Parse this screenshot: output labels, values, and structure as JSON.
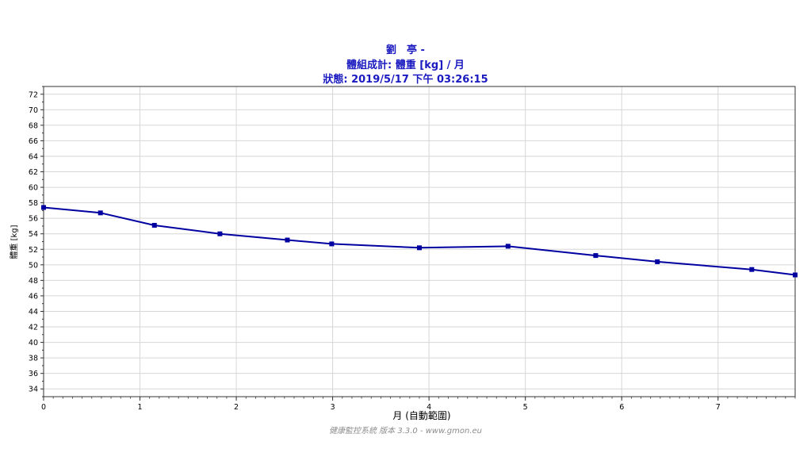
{
  "chart_data": {
    "type": "line",
    "title": "劉　亭 -",
    "subtitle": "體組成計: 體重 [kg] / 月",
    "status": "狀態:  2019/5/17 下午 03:26:15",
    "xlabel": "月 (自動範圍)",
    "ylabel": "體重 [kg]",
    "xlim": [
      0,
      7.8
    ],
    "ylim": [
      33,
      73
    ],
    "xticks": [
      0,
      1,
      2,
      3,
      4,
      5,
      6,
      7
    ],
    "yticks": [
      34,
      36,
      38,
      40,
      42,
      44,
      46,
      48,
      50,
      52,
      54,
      56,
      58,
      60,
      62,
      64,
      66,
      68,
      70,
      72
    ],
    "grid": true,
    "series": [
      {
        "color": "#0000a0",
        "x": [
          0,
          0.59,
          1.15,
          1.83,
          2.53,
          2.99,
          3.9,
          4.82,
          5.73,
          6.37,
          7.35,
          7.8
        ],
        "y": [
          57.4,
          56.7,
          55.1,
          54.0,
          53.2,
          52.7,
          52.2,
          52.4,
          51.2,
          50.4,
          49.4,
          48.7
        ]
      }
    ]
  },
  "footer": "健康監控系統 版本 3.3.0 - www.gmon.eu"
}
